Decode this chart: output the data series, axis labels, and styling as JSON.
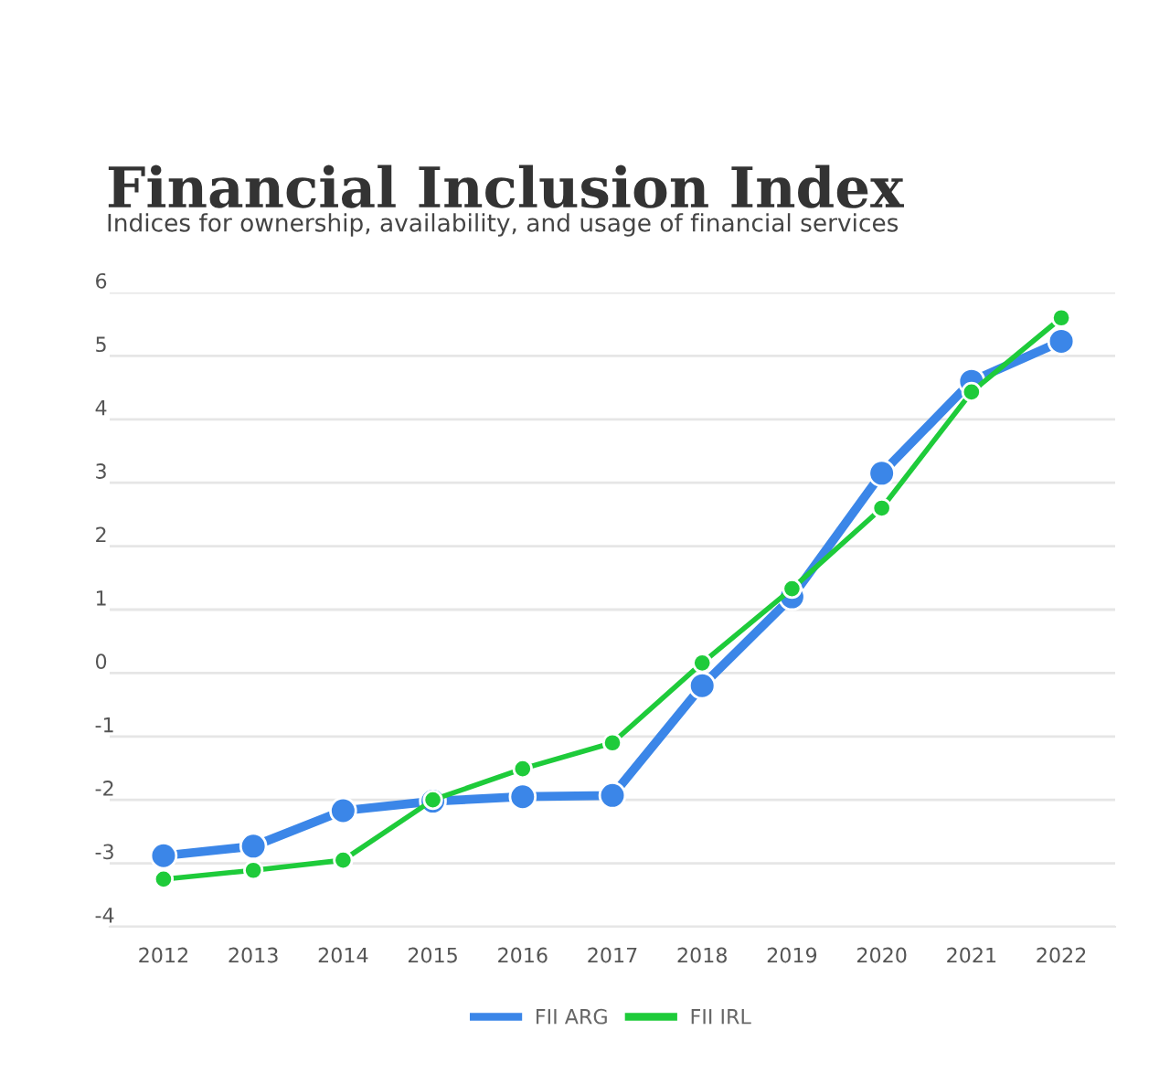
{
  "chart_data": {
    "type": "line",
    "title": "Financial Inclusion Index",
    "subtitle": "Indices for ownership, availability, and usage of financial services",
    "categories": [
      "2012",
      "2013",
      "2014",
      "2015",
      "2016",
      "2017",
      "2018",
      "2019",
      "2020",
      "2021",
      "2022"
    ],
    "series": [
      {
        "name": "FII ARG",
        "color": "#3b86e8",
        "values": [
          -2.88,
          -2.73,
          -2.17,
          -2.02,
          -1.95,
          -1.93,
          -0.2,
          1.2,
          3.15,
          4.6,
          5.23
        ]
      },
      {
        "name": "FII IRL",
        "color": "#1ecb3a",
        "values": [
          -3.25,
          -3.11,
          -2.95,
          -2.0,
          -1.51,
          -1.1,
          0.16,
          1.33,
          2.6,
          4.43,
          5.6
        ]
      }
    ],
    "ylim": [
      -4,
      6
    ],
    "yticks": [
      -4,
      -3,
      -2,
      -1,
      0,
      1,
      2,
      3,
      4,
      5,
      6
    ],
    "grid": "y",
    "legend": "bottom",
    "marker": "circle",
    "line_style": "solid"
  }
}
